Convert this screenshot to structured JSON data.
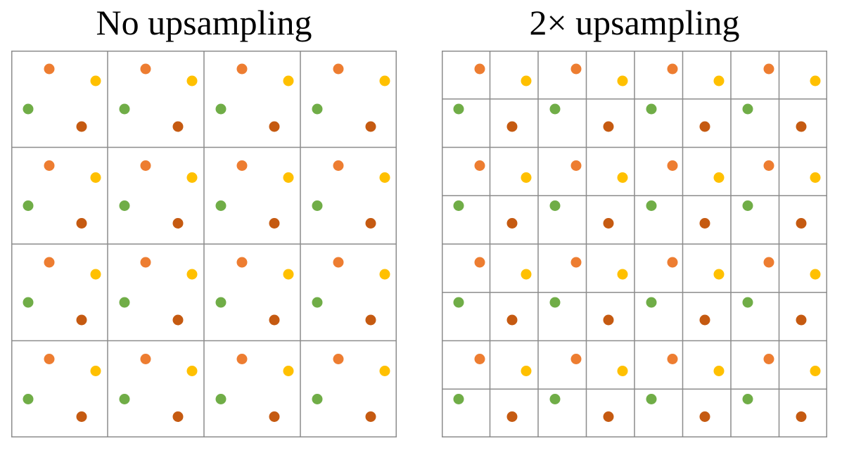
{
  "panels": [
    {
      "title": "No upsampling",
      "grid_divisions": 4,
      "dots_per_pattern": "repeated in every cell"
    },
    {
      "title": "2× upsampling",
      "grid_divisions": 8,
      "dots_per_pattern": "same dot pattern as left panel, finer grid"
    }
  ],
  "dot_colors": {
    "orange": "#ED7D31",
    "yellow": "#FFC000",
    "green": "#70AD47",
    "dark_orange": "#C55A11"
  },
  "grid_line_color": "#8C8C8C"
}
